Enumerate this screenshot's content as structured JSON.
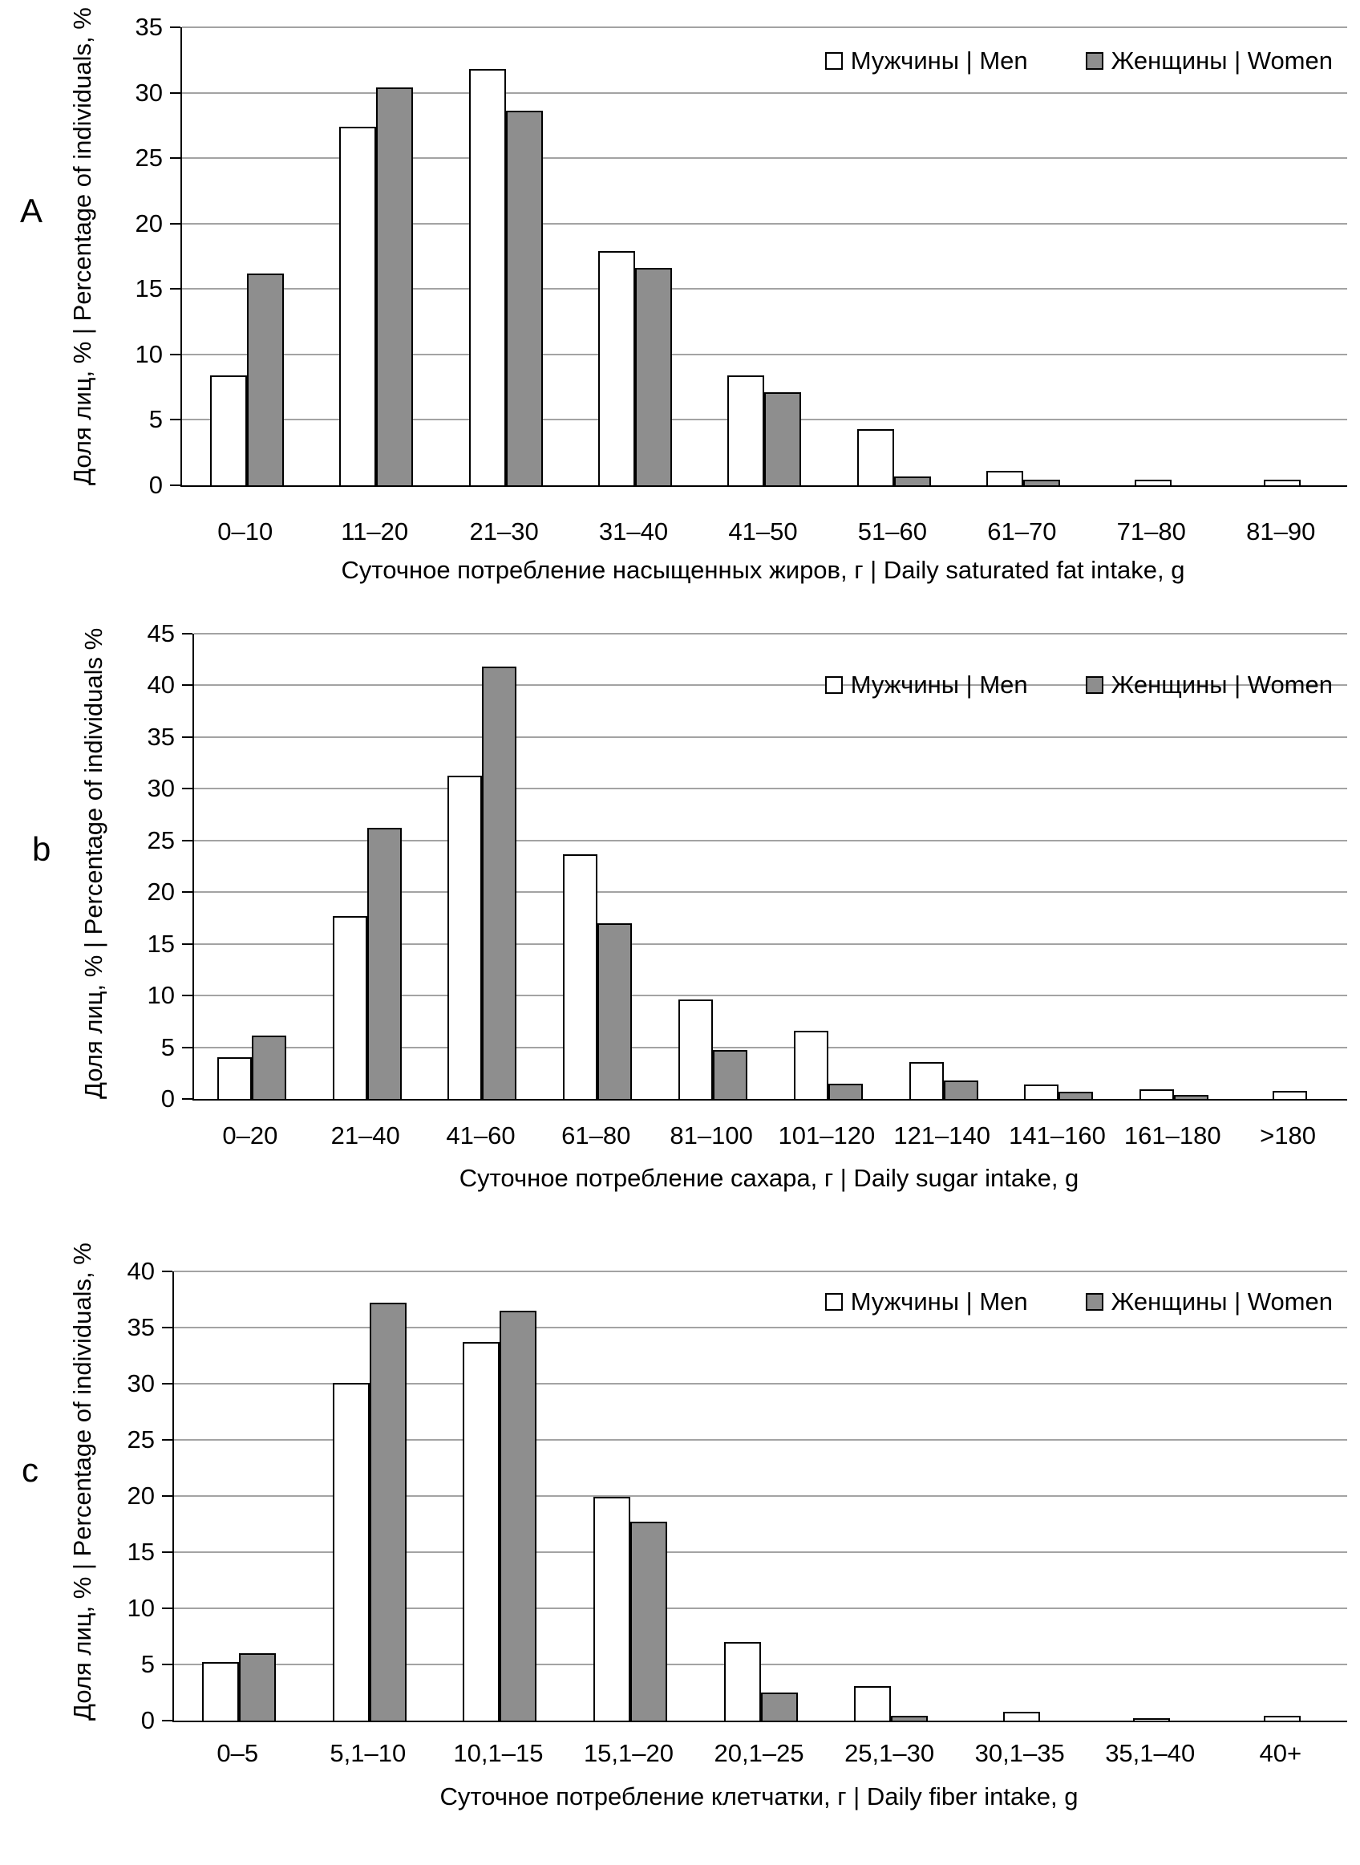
{
  "page": {
    "background": "#ffffff"
  },
  "legend": {
    "items": [
      {
        "series": "men",
        "label": "Мужчины | Men"
      },
      {
        "series": "women",
        "label": "Женщины | Women"
      }
    ]
  },
  "colors": {
    "men_fill": "#ffffff",
    "women_fill": "#8e8e8e",
    "bar_border": "#000000",
    "gridline": "#a3a3a3",
    "axis": "#000000",
    "text": "#000000"
  },
  "chart_data": [
    {
      "type": "bar",
      "panel_label": "A",
      "ylabel": "Доля лиц, % | Percentage of individuals, %",
      "xlabel": "Суточное потребление насыщенных жиров, г | Daily saturated fat intake, g",
      "categories": [
        "0–10",
        "11–20",
        "21–30",
        "31–40",
        "41–50",
        "51–60",
        "61–70",
        "71–80",
        "81–90"
      ],
      "series": [
        {
          "name": "Мужчины | Men",
          "values": [
            8.4,
            27.4,
            31.8,
            17.9,
            8.4,
            4.3,
            1.1,
            0.4,
            0.4
          ]
        },
        {
          "name": "Женщины | Women",
          "values": [
            16.2,
            30.4,
            28.6,
            16.6,
            7.1,
            0.7,
            0.4,
            0,
            0
          ]
        }
      ],
      "ylim": [
        0,
        35
      ],
      "ytick_step": 5,
      "grid": true,
      "legend_position": "top-right"
    },
    {
      "type": "bar",
      "panel_label": "b",
      "ylabel": "Доля лиц, % | Percentage of individuals %",
      "xlabel": "Суточное потребление сахара, г | Daily sugar intake, g",
      "categories": [
        "0–20",
        "21–40",
        "41–60",
        "61–80",
        "81–100",
        "101–120",
        "121–140",
        "141–160",
        "161–180",
        ">180"
      ],
      "series": [
        {
          "name": "Мужчины | Men",
          "values": [
            4.0,
            17.7,
            31.3,
            23.7,
            9.6,
            6.6,
            3.6,
            1.4,
            0.9,
            0.8
          ]
        },
        {
          "name": "Женщины | Women",
          "values": [
            6.1,
            26.2,
            41.8,
            17.0,
            4.7,
            1.5,
            1.8,
            0.7,
            0.4,
            0
          ]
        }
      ],
      "ylim": [
        0,
        45
      ],
      "ytick_step": 5,
      "grid": true,
      "legend_position": "top-right"
    },
    {
      "type": "bar",
      "panel_label": "c",
      "ylabel": "Доля лиц, % | Percentage of individuals, %",
      "xlabel": "Суточное потребление клетчатки, г | Daily fiber intake, g",
      "categories": [
        "0–5",
        "5,1–10",
        "10,1–15",
        "15,1–20",
        "20,1–25",
        "25,1–30",
        "30,1–35",
        "35,1–40",
        "40+"
      ],
      "series": [
        {
          "name": "Мужчины | Men",
          "values": [
            5.2,
            30.1,
            33.7,
            19.9,
            7.0,
            3.1,
            0.8,
            0.2,
            0.4
          ]
        },
        {
          "name": "Женщины | Women",
          "values": [
            6.0,
            37.2,
            36.5,
            17.7,
            2.5,
            0.4,
            0,
            0,
            0
          ]
        }
      ],
      "ylim": [
        0,
        40
      ],
      "ytick_step": 5,
      "grid": true,
      "legend_position": "top-right"
    }
  ]
}
